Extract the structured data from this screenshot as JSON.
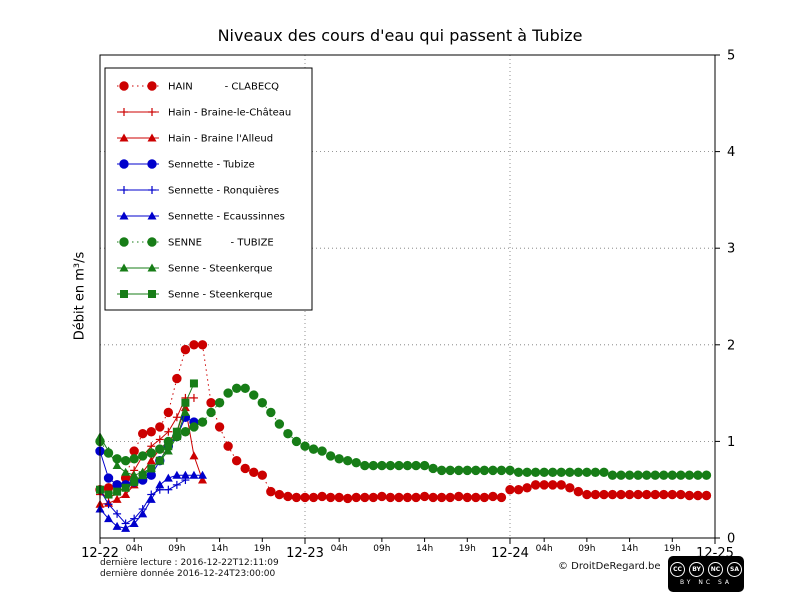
{
  "footer": {
    "last_reading": "dernière lecture : 2016-12-22T12:11:09",
    "last_data": "dernière donnée  2016-12-24T23:00:00",
    "copyright": "© DroitDeRegard.be",
    "cc_icons": [
      "CC",
      "BY",
      "NC",
      "SA"
    ],
    "cc_text": "BY NC SA"
  },
  "chart_data": {
    "type": "line",
    "title": "Niveaux des cours d'eau qui passent à Tubize",
    "xlabel": "",
    "ylabel": "Débit en m³/s",
    "x_unit": "hours since 2016-12-22 00:00",
    "xlim": [
      0,
      72
    ],
    "ylim": [
      0,
      5
    ],
    "yticks": [
      0,
      1,
      2,
      3,
      4,
      5
    ],
    "grid": {
      "horizontal_values": [
        1,
        2,
        3,
        4
      ],
      "vertical_hours": [
        24,
        48
      ],
      "style": "dotted"
    },
    "legend_position": "upper-left",
    "xticks": [
      {
        "h": 0,
        "label": "12-22",
        "major": true
      },
      {
        "h": 4,
        "label": "04h"
      },
      {
        "h": 9,
        "label": "09h"
      },
      {
        "h": 14,
        "label": "14h"
      },
      {
        "h": 19,
        "label": "19h"
      },
      {
        "h": 24,
        "label": "12-23",
        "major": true
      },
      {
        "h": 28,
        "label": "04h"
      },
      {
        "h": 33,
        "label": "09h"
      },
      {
        "h": 38,
        "label": "14h"
      },
      {
        "h": 43,
        "label": "19h"
      },
      {
        "h": 48,
        "label": "12-24",
        "major": true
      },
      {
        "h": 52,
        "label": "04h"
      },
      {
        "h": 57,
        "label": "09h"
      },
      {
        "h": 62,
        "label": "14h"
      },
      {
        "h": 67,
        "label": "19h"
      },
      {
        "h": 72,
        "label": "12-25",
        "major": true
      }
    ],
    "series": [
      {
        "name": "HAIN - CLABECQ",
        "legend_label": "HAIN          - CLABECQ",
        "color": "#cc0000",
        "marker": "circle",
        "line": "dotted",
        "x": [
          0,
          1,
          2,
          3,
          4,
          5,
          6,
          7,
          8,
          9,
          10,
          11,
          12,
          13,
          14,
          15,
          16,
          17,
          18,
          19,
          20,
          21,
          22,
          23,
          24,
          25,
          26,
          27,
          28,
          29,
          30,
          31,
          32,
          33,
          34,
          35,
          36,
          37,
          38,
          39,
          40,
          41,
          42,
          43,
          44,
          45,
          46,
          47,
          48,
          49,
          50,
          51,
          52,
          53,
          54,
          55,
          56,
          57,
          58,
          59,
          60,
          61,
          62,
          63,
          64,
          65,
          66,
          67,
          68,
          69,
          70,
          71
        ],
        "y": [
          0.5,
          0.52,
          0.55,
          0.62,
          0.9,
          1.08,
          1.1,
          1.15,
          1.3,
          1.65,
          1.95,
          2.0,
          2.0,
          1.4,
          1.15,
          0.95,
          0.8,
          0.72,
          0.68,
          0.65,
          0.48,
          0.45,
          0.43,
          0.42,
          0.42,
          0.42,
          0.43,
          0.42,
          0.42,
          0.41,
          0.42,
          0.42,
          0.42,
          0.43,
          0.42,
          0.42,
          0.42,
          0.42,
          0.43,
          0.42,
          0.42,
          0.42,
          0.43,
          0.42,
          0.42,
          0.42,
          0.43,
          0.42,
          0.5,
          0.5,
          0.52,
          0.55,
          0.55,
          0.55,
          0.55,
          0.52,
          0.48,
          0.45,
          0.45,
          0.45,
          0.45,
          0.45,
          0.45,
          0.45,
          0.45,
          0.45,
          0.45,
          0.45,
          0.45,
          0.44,
          0.44,
          0.44
        ]
      },
      {
        "name": "Hain - Braine-le-Château",
        "legend_label": "Hain - Braine-le-Château",
        "color": "#cc0000",
        "marker": "plus",
        "line": "solid",
        "x": [
          0,
          1,
          2,
          3,
          4,
          5,
          6,
          7,
          8,
          9,
          10,
          11
        ],
        "y": [
          0.45,
          0.43,
          0.45,
          0.55,
          0.7,
          0.85,
          0.95,
          1.02,
          1.1,
          1.25,
          1.45,
          1.45
        ]
      },
      {
        "name": "Hain - Braine l'Alleud",
        "legend_label": "Hain - Braine l'Alleud",
        "color": "#cc0000",
        "marker": "triangle",
        "line": "solid",
        "x": [
          0,
          1,
          2,
          3,
          4,
          5,
          6,
          7,
          8,
          9,
          10,
          11,
          12
        ],
        "y": [
          0.35,
          0.36,
          0.4,
          0.45,
          0.55,
          0.68,
          0.8,
          0.92,
          1.0,
          1.1,
          1.35,
          0.85,
          0.6
        ]
      },
      {
        "name": "Sennette - Tubize",
        "legend_label": "Sennette - Tubize",
        "color": "#0000cc",
        "marker": "circle",
        "line": "solid",
        "x": [
          0,
          1,
          2,
          3,
          4,
          5,
          6,
          7,
          8,
          9,
          10,
          11
        ],
        "y": [
          0.9,
          0.62,
          0.55,
          0.55,
          0.58,
          0.6,
          0.65,
          0.8,
          0.95,
          1.05,
          1.25,
          1.2
        ]
      },
      {
        "name": "Sennette - Ronquières",
        "legend_label": "Sennette - Ronquières",
        "color": "#0000cc",
        "marker": "plus",
        "line": "solid",
        "x": [
          0,
          1,
          2,
          3,
          4,
          5,
          6,
          7,
          8,
          9,
          10
        ],
        "y": [
          0.5,
          0.35,
          0.25,
          0.15,
          0.2,
          0.3,
          0.45,
          0.5,
          0.5,
          0.55,
          0.6
        ]
      },
      {
        "name": "Sennette - Ecaussinnes",
        "legend_label": "Sennette - Ecaussinnes",
        "color": "#0000cc",
        "marker": "triangle",
        "line": "solid",
        "x": [
          0,
          1,
          2,
          3,
          4,
          5,
          6,
          7,
          8,
          9,
          10,
          11,
          12
        ],
        "y": [
          0.3,
          0.2,
          0.12,
          0.1,
          0.15,
          0.25,
          0.4,
          0.55,
          0.62,
          0.65,
          0.65,
          0.65,
          0.65
        ]
      },
      {
        "name": "SENNE - TUBIZE",
        "legend_label": "SENNE         - TUBIZE",
        "color": "#177d17",
        "marker": "circle",
        "line": "dotted",
        "x": [
          0,
          1,
          2,
          3,
          4,
          5,
          6,
          7,
          8,
          9,
          10,
          11,
          12,
          13,
          14,
          15,
          16,
          17,
          18,
          19,
          20,
          21,
          22,
          23,
          24,
          25,
          26,
          27,
          28,
          29,
          30,
          31,
          32,
          33,
          34,
          35,
          36,
          37,
          38,
          39,
          40,
          41,
          42,
          43,
          44,
          45,
          46,
          47,
          48,
          49,
          50,
          51,
          52,
          53,
          54,
          55,
          56,
          57,
          58,
          59,
          60,
          61,
          62,
          63,
          64,
          65,
          66,
          67,
          68,
          69,
          70,
          71
        ],
        "y": [
          1.0,
          0.88,
          0.82,
          0.8,
          0.82,
          0.85,
          0.88,
          0.92,
          1.0,
          1.05,
          1.1,
          1.15,
          1.2,
          1.3,
          1.4,
          1.5,
          1.55,
          1.55,
          1.48,
          1.4,
          1.3,
          1.18,
          1.08,
          1.0,
          0.95,
          0.92,
          0.9,
          0.85,
          0.82,
          0.8,
          0.78,
          0.75,
          0.75,
          0.75,
          0.75,
          0.75,
          0.75,
          0.75,
          0.75,
          0.72,
          0.7,
          0.7,
          0.7,
          0.7,
          0.7,
          0.7,
          0.7,
          0.7,
          0.7,
          0.68,
          0.68,
          0.68,
          0.68,
          0.68,
          0.68,
          0.68,
          0.68,
          0.68,
          0.68,
          0.68,
          0.65,
          0.65,
          0.65,
          0.65,
          0.65,
          0.65,
          0.65,
          0.65,
          0.65,
          0.65,
          0.65,
          0.65
        ]
      },
      {
        "name": "Senne - Steenkerque",
        "legend_label": "Senne - Steenkerque",
        "color": "#177d17",
        "marker": "triangle",
        "line": "solid",
        "x": [
          0,
          1,
          2,
          3,
          4,
          5,
          6,
          7,
          8,
          9,
          10
        ],
        "y": [
          1.05,
          0.9,
          0.75,
          0.68,
          0.65,
          0.68,
          0.72,
          0.8,
          0.9,
          1.05,
          1.3
        ]
      },
      {
        "name": "Senne - Steenkerque",
        "legend_label": "Senne - Steenkerque",
        "color": "#177d17",
        "marker": "square",
        "line": "solid",
        "x": [
          0,
          1,
          2,
          3,
          4,
          5,
          6,
          7,
          8,
          9,
          10,
          11
        ],
        "y": [
          0.5,
          0.45,
          0.48,
          0.52,
          0.58,
          0.65,
          0.72,
          0.8,
          0.95,
          1.1,
          1.4,
          1.6
        ]
      }
    ]
  }
}
